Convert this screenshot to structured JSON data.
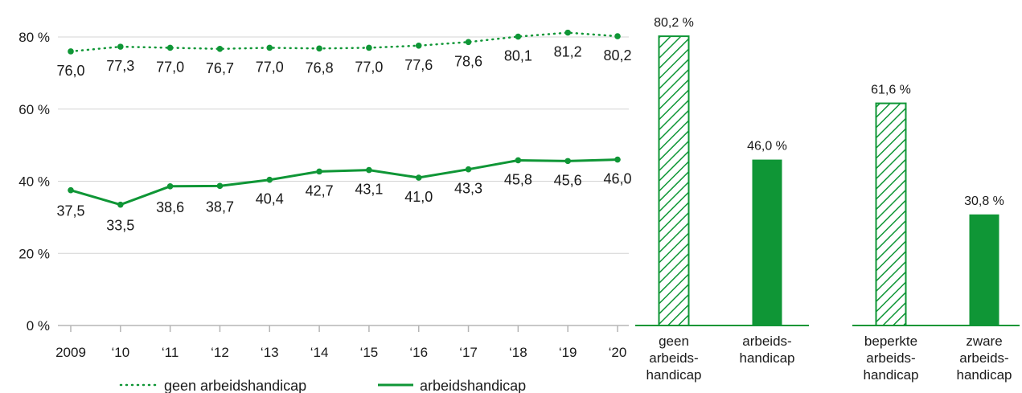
{
  "colors": {
    "series": "#0f9636",
    "grid": "#d4d4d4",
    "axis": "#0f9636",
    "text": "#1a1a1a"
  },
  "chart_data": [
    {
      "type": "line",
      "x": [
        "2009",
        "‘10",
        "‘11",
        "‘12",
        "‘13",
        "‘14",
        "‘15",
        "‘16",
        "‘17",
        "‘18",
        "‘19",
        "‘20"
      ],
      "ylim": [
        0,
        80
      ],
      "yticks": [
        "0 %",
        "20 %",
        "40 %",
        "60 %",
        "80 %"
      ],
      "grid": true,
      "legend_position": "bottom",
      "series": [
        {
          "name": "geen arbeidshandicap",
          "style": "dotted",
          "values": [
            76.0,
            77.3,
            77.0,
            76.7,
            77.0,
            76.8,
            77.0,
            77.6,
            78.6,
            80.1,
            81.2,
            80.2
          ],
          "labels": [
            "76,0",
            "77,3",
            "77,0",
            "76,7",
            "77,0",
            "76,8",
            "77,0",
            "77,6",
            "78,6",
            "80,1",
            "81,2",
            "80,2"
          ]
        },
        {
          "name": "arbeidshandicap",
          "style": "solid",
          "values": [
            37.5,
            33.5,
            38.6,
            38.7,
            40.4,
            42.7,
            43.1,
            41.0,
            43.3,
            45.8,
            45.6,
            46.0
          ],
          "labels": [
            "37,5",
            "33,5",
            "38,6",
            "38,7",
            "40,4",
            "42,7",
            "43,1",
            "41,0",
            "43,3",
            "45,8",
            "45,6",
            "46,0"
          ]
        }
      ]
    },
    {
      "type": "bar",
      "categories": [
        [
          "geen",
          "arbeids-",
          "handicap"
        ],
        [
          "arbeids-",
          "handicap"
        ]
      ],
      "values": [
        80.2,
        46.0
      ],
      "labels": [
        "80,2 %",
        "46,0 %"
      ],
      "patterns": [
        "hatched",
        "solid"
      ]
    },
    {
      "type": "bar",
      "categories": [
        [
          "beperkte",
          "arbeids-",
          "handicap"
        ],
        [
          "zware",
          "arbeids-",
          "handicap"
        ]
      ],
      "values": [
        61.6,
        30.8
      ],
      "labels": [
        "61,6 %",
        "30,8 %"
      ],
      "patterns": [
        "hatched",
        "solid"
      ]
    }
  ]
}
